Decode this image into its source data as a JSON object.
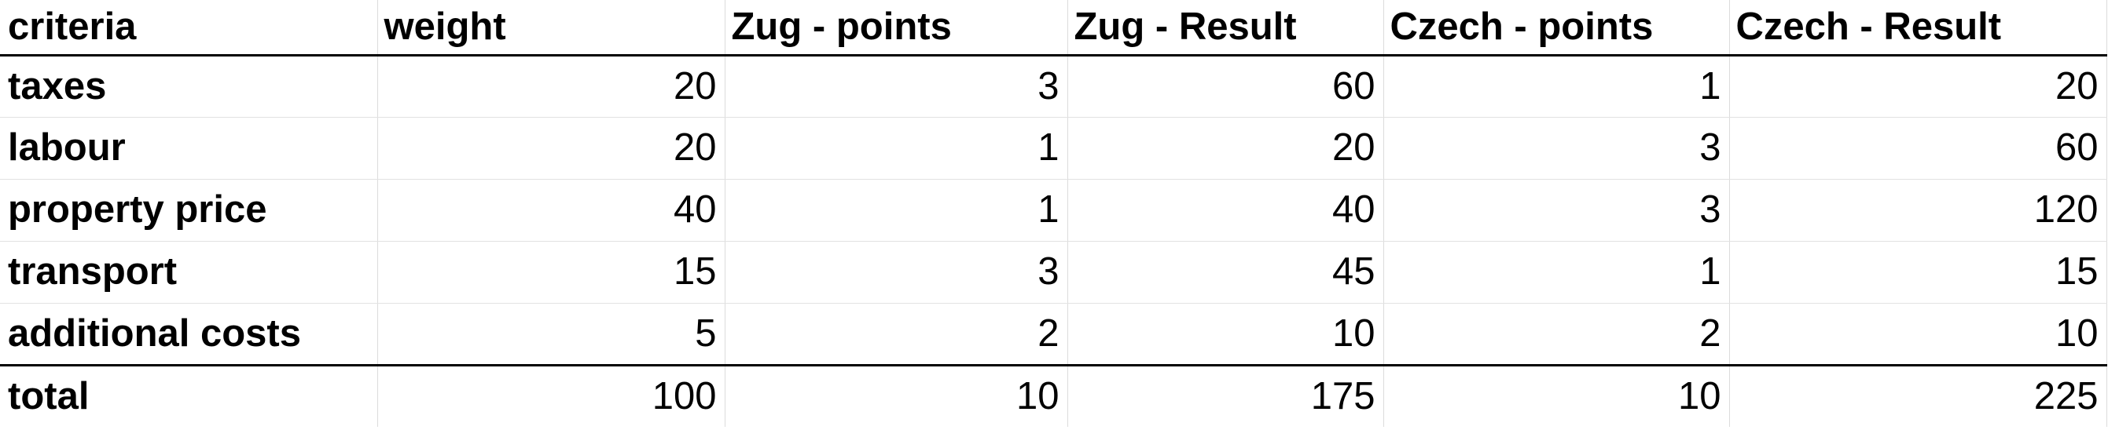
{
  "sheet": {
    "headers": [
      "criteria",
      "weight",
      "Zug - points",
      "Zug - Result",
      "Czech - points",
      "Czech - Result"
    ],
    "rows": [
      {
        "criteria": "taxes",
        "weight": "20",
        "zug_points": "3",
        "zug_result": "60",
        "czech_points": "1",
        "czech_result": "20"
      },
      {
        "criteria": "labour",
        "weight": "20",
        "zug_points": "1",
        "zug_result": "20",
        "czech_points": "3",
        "czech_result": "60"
      },
      {
        "criteria": "property price",
        "weight": "40",
        "zug_points": "1",
        "zug_result": "40",
        "czech_points": "3",
        "czech_result": "120"
      },
      {
        "criteria": "transport",
        "weight": "15",
        "zug_points": "3",
        "zug_result": "45",
        "czech_points": "1",
        "czech_result": "15"
      },
      {
        "criteria": "additional costs",
        "weight": "5",
        "zug_points": "2",
        "zug_result": "10",
        "czech_points": "2",
        "czech_result": "10"
      }
    ],
    "total": {
      "criteria": "total",
      "weight": "100",
      "zug_points": "10",
      "zug_result": "175",
      "czech_points": "10",
      "czech_result": "225"
    }
  }
}
